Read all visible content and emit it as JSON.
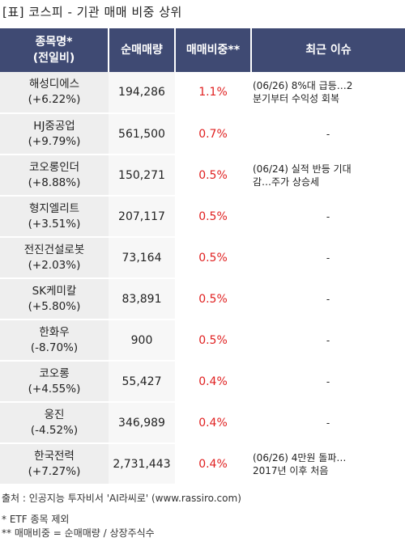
{
  "title": "[표] 코스피 - 기관 매매 비중 상위",
  "headers": {
    "name_line1": "종목명*",
    "name_line2": "(전일비)",
    "qty": "순매매량",
    "ratio": "매매비중**",
    "issue": "최근 이슈"
  },
  "rows": [
    {
      "name": "해성디에스",
      "change": "(+6.22%)",
      "qty": "194,286",
      "ratio": "1.1%",
      "issue1": "(06/26) 8%대 급등…2",
      "issue2": "분기부터 수익성 회복"
    },
    {
      "name": "HJ중공업",
      "change": "(+9.79%)",
      "qty": "561,500",
      "ratio": "0.7%",
      "issue1": "-",
      "issue2": ""
    },
    {
      "name": "코오롱인더",
      "change": "(+8.88%)",
      "qty": "150,271",
      "ratio": "0.5%",
      "issue1": "(06/24) 실적 반등 기대",
      "issue2": "감…주가 상승세"
    },
    {
      "name": "형지엘리트",
      "change": "(+3.51%)",
      "qty": "207,117",
      "ratio": "0.5%",
      "issue1": "-",
      "issue2": ""
    },
    {
      "name": "전진건설로봇",
      "change": "(+2.03%)",
      "qty": "73,164",
      "ratio": "0.5%",
      "issue1": "-",
      "issue2": ""
    },
    {
      "name": "SK케미칼",
      "change": "(+5.80%)",
      "qty": "83,891",
      "ratio": "0.5%",
      "issue1": "-",
      "issue2": ""
    },
    {
      "name": "한화우",
      "change": "(-8.70%)",
      "qty": "900",
      "ratio": "0.5%",
      "issue1": "-",
      "issue2": ""
    },
    {
      "name": "코오롱",
      "change": "(+4.55%)",
      "qty": "55,427",
      "ratio": "0.4%",
      "issue1": "-",
      "issue2": ""
    },
    {
      "name": "웅진",
      "change": "(-4.52%)",
      "qty": "346,989",
      "ratio": "0.4%",
      "issue1": "-",
      "issue2": ""
    },
    {
      "name": "한국전력",
      "change": "(+7.27%)",
      "qty": "2,731,443",
      "ratio": "0.4%",
      "issue1": "(06/26) 4만원 돌파…",
      "issue2": "2017년 이후 처음"
    }
  ],
  "footer": {
    "source": "출처 : 인공지능 투자비서 'AI라씨로' (www.rassiro.com)",
    "note1": "* ETF 종목 제외",
    "note2": "** 매매비중 = 순매매량 / 상장주식수"
  },
  "colors": {
    "header_bg": "#3f4a73",
    "ratio_text": "#e02020",
    "name_bg": "#eeeeee"
  }
}
